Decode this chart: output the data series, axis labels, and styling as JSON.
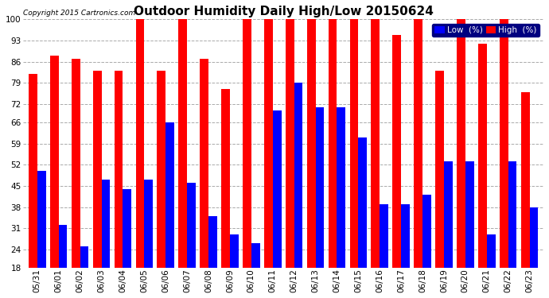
{
  "title": "Outdoor Humidity Daily High/Low 20150624",
  "copyright": "Copyright 2015 Cartronics.com",
  "labels": [
    "05/31",
    "06/01",
    "06/02",
    "06/03",
    "06/04",
    "06/05",
    "06/06",
    "06/07",
    "06/08",
    "06/09",
    "06/10",
    "06/11",
    "06/12",
    "06/13",
    "06/14",
    "06/15",
    "06/16",
    "06/17",
    "06/18",
    "06/19",
    "06/20",
    "06/21",
    "06/22",
    "06/23"
  ],
  "high": [
    82,
    88,
    87,
    83,
    83,
    100,
    83,
    100,
    87,
    77,
    100,
    100,
    100,
    100,
    100,
    100,
    100,
    95,
    100,
    83,
    100,
    92,
    100,
    76
  ],
  "low": [
    50,
    32,
    25,
    47,
    44,
    47,
    66,
    46,
    35,
    29,
    26,
    70,
    79,
    71,
    71,
    61,
    39,
    39,
    42,
    53,
    53,
    29,
    53,
    38
  ],
  "ymin": 18,
  "ylim": [
    18,
    100
  ],
  "yticks": [
    18,
    24,
    31,
    38,
    45,
    52,
    59,
    66,
    72,
    79,
    86,
    93,
    100
  ],
  "high_color": "#FF0000",
  "low_color": "#0000FF",
  "bg_color": "#FFFFFF",
  "grid_color": "#AAAAAA",
  "title_fontsize": 11,
  "tick_fontsize": 7.5,
  "bar_width": 0.4,
  "figwidth": 6.9,
  "figheight": 3.75,
  "dpi": 100
}
